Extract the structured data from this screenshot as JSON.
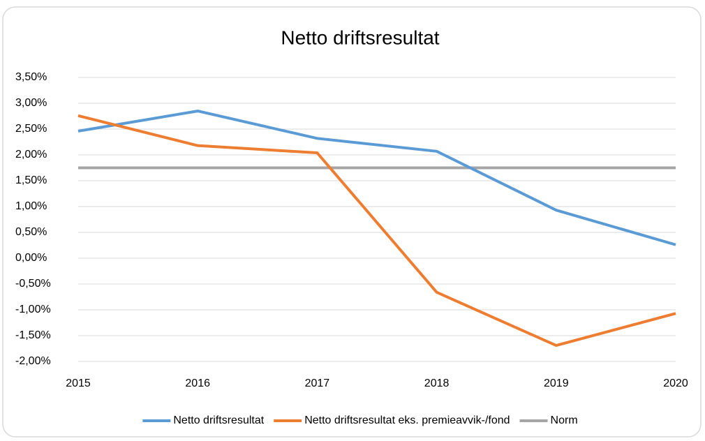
{
  "chart_data": {
    "type": "line",
    "title": "Netto driftsresultat",
    "x": [
      2015,
      2016,
      2017,
      2018,
      2019,
      2020
    ],
    "xlim": [
      2015,
      2020
    ],
    "xticks": [
      2015,
      2016,
      2017,
      2018,
      2019,
      2020
    ],
    "ylim": [
      -2,
      3.5
    ],
    "yticks": [
      {
        "value": -2,
        "label": "-2,00%"
      },
      {
        "value": -1.5,
        "label": "-1,50%"
      },
      {
        "value": -1,
        "label": "-1,00%"
      },
      {
        "value": -0.5,
        "label": "-0,50%"
      },
      {
        "value": 0,
        "label": "0,00%"
      },
      {
        "value": 0.5,
        "label": "0,50%"
      },
      {
        "value": 1,
        "label": "1,00%"
      },
      {
        "value": 1.5,
        "label": "1,50%"
      },
      {
        "value": 2,
        "label": "2,00%"
      },
      {
        "value": 2.5,
        "label": "2,50%"
      },
      {
        "value": 3,
        "label": "3,00%"
      },
      {
        "value": 3.5,
        "label": "3,50%"
      }
    ],
    "grid": true,
    "legend": "bottom",
    "series": [
      {
        "name": "Netto driftsresultat",
        "color": "#5b9bd5",
        "values": [
          2.46,
          2.85,
          2.32,
          2.07,
          0.93,
          0.26
        ]
      },
      {
        "name": "Netto driftsresultat eks. premieavvik-/fond",
        "color": "#ed7d31",
        "values": [
          2.76,
          2.18,
          2.04,
          -0.66,
          -1.69,
          -1.07
        ]
      },
      {
        "name": "Norm",
        "color": "#a5a5a5",
        "values": [
          1.75,
          1.75,
          1.75,
          1.75,
          1.75,
          1.75
        ]
      }
    ]
  }
}
